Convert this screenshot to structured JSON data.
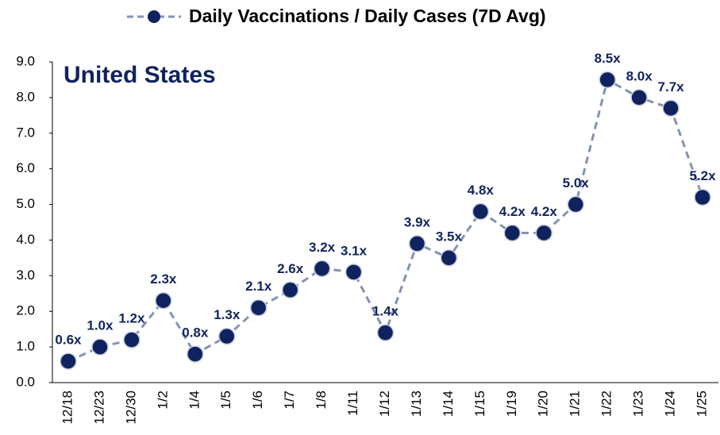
{
  "chart_data": {
    "type": "line",
    "annotation": "United States",
    "categories": [
      "12/18",
      "12/23",
      "12/30",
      "1/2",
      "1/4",
      "1/5",
      "1/6",
      "1/7",
      "1/8",
      "1/11",
      "1/12",
      "1/13",
      "1/14",
      "1/15",
      "1/19",
      "1/20",
      "1/21",
      "1/22",
      "1/23",
      "1/24",
      "1/25"
    ],
    "series": [
      {
        "name": "Daily Vaccinations / Daily Cases (7D Avg)",
        "color": "#10235e",
        "line_color": "#8393b3",
        "values": [
          0.6,
          1.0,
          1.2,
          2.3,
          0.8,
          1.3,
          2.1,
          2.6,
          3.2,
          3.1,
          1.4,
          3.9,
          3.5,
          4.8,
          4.2,
          4.2,
          5.0,
          8.5,
          8.0,
          7.7,
          5.2
        ],
        "value_labels": [
          "0.6x",
          "1.0x",
          "1.2x",
          "2.3x",
          "0.8x",
          "1.3x",
          "2.1x",
          "2.6x",
          "3.2x",
          "3.1x",
          "1.4x",
          "3.9x",
          "3.5x",
          "4.8x",
          "4.2x",
          "4.2x",
          "5.0x",
          "8.5x",
          "8.0x",
          "7.7x",
          "5.2x"
        ]
      }
    ],
    "ylim": [
      0,
      9
    ],
    "yticks": [
      {
        "value": 0,
        "label": "0.0"
      },
      {
        "value": 1,
        "label": "1.0"
      },
      {
        "value": 2,
        "label": "2.0"
      },
      {
        "value": 3,
        "label": "3.0"
      },
      {
        "value": 4,
        "label": "4.0"
      },
      {
        "value": 5,
        "label": "5.0"
      },
      {
        "value": 6,
        "label": "6.0"
      },
      {
        "value": 7,
        "label": "7.0"
      },
      {
        "value": 8,
        "label": "8.0"
      },
      {
        "value": 9,
        "label": "9.0"
      }
    ],
    "grid": false
  }
}
